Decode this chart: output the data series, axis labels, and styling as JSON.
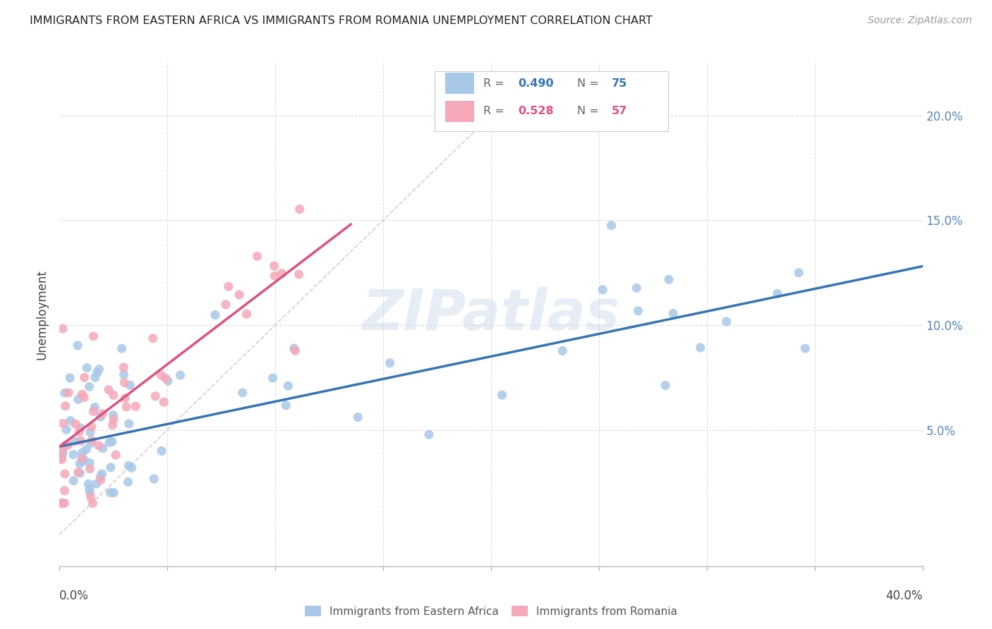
{
  "title": "IMMIGRANTS FROM EASTERN AFRICA VS IMMIGRANTS FROM ROMANIA UNEMPLOYMENT CORRELATION CHART",
  "source": "Source: ZipAtlas.com",
  "ylabel": "Unemployment",
  "legend_label_blue": "Immigrants from Eastern Africa",
  "legend_label_pink": "Immigrants from Romania",
  "watermark": "ZIPatlas",
  "blue_color": "#a8c8e8",
  "blue_line_color": "#3575b5",
  "pink_color": "#f4a8b8",
  "pink_line_color": "#e05080",
  "gray_line_color": "#d0c0c0",
  "background_color": "#ffffff",
  "xlim": [
    0.0,
    0.4
  ],
  "ylim": [
    -0.015,
    0.225
  ],
  "ytick_vals": [
    0.05,
    0.1,
    0.15,
    0.2
  ],
  "ytick_labels": [
    "5.0%",
    "10.0%",
    "15.0%",
    "20.0%"
  ],
  "blue_R": 0.49,
  "blue_N": 75,
  "pink_R": 0.528,
  "pink_N": 57,
  "blue_line_x0": 0.0,
  "blue_line_x1": 0.4,
  "blue_line_y0": 0.042,
  "blue_line_y1": 0.128,
  "pink_line_x0": 0.0,
  "pink_line_x1": 0.135,
  "pink_line_y0": 0.042,
  "pink_line_y1": 0.148,
  "gray_line_x0": 0.0,
  "gray_line_x1": 0.22,
  "gray_line_y0": 0.0,
  "gray_line_y1": 0.22
}
